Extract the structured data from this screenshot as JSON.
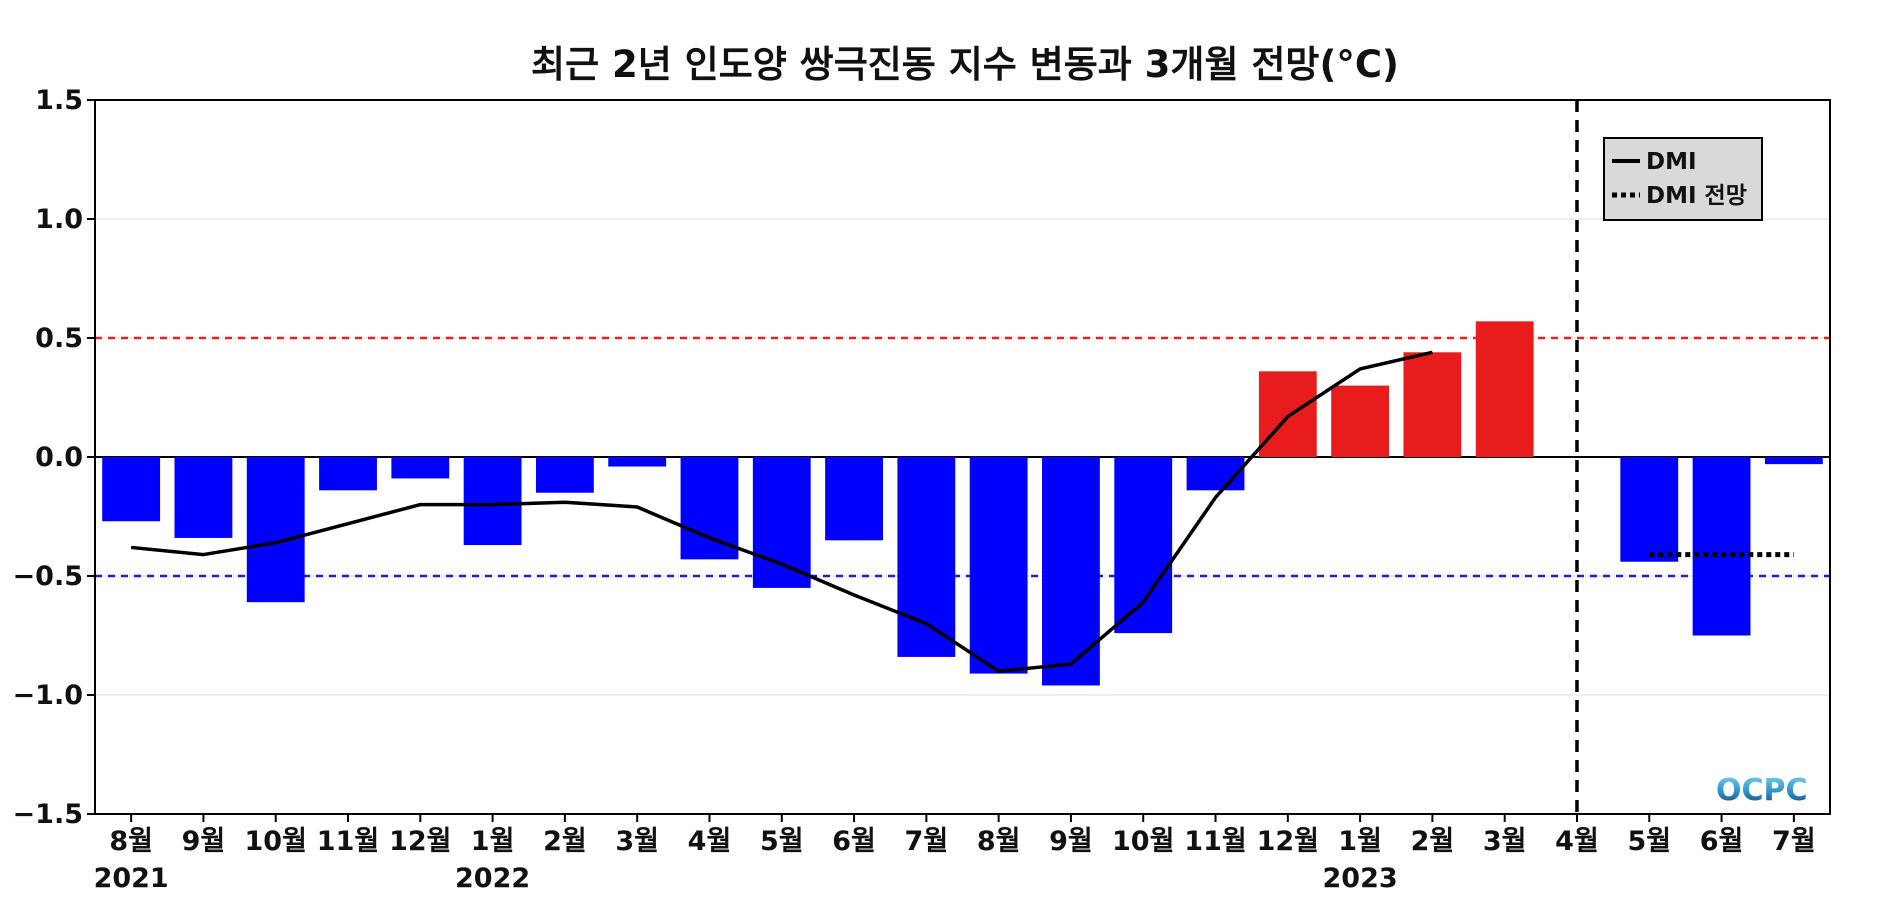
{
  "chart_data": {
    "type": "bar",
    "title": "최근 2년 인도양 쌍극진동 지수 변동과 3개월 전망(°C)",
    "categories": [
      "8월",
      "9월",
      "10월",
      "11월",
      "12월",
      "1월",
      "2월",
      "3월",
      "4월",
      "5월",
      "6월",
      "7월",
      "8월",
      "9월",
      "10월",
      "11월",
      "12월",
      "1월",
      "2월",
      "3월",
      "4월",
      "5월",
      "6월",
      "7월"
    ],
    "years": [
      {
        "label": "2021",
        "index": 0
      },
      {
        "label": "2022",
        "index": 5
      },
      {
        "label": "2023",
        "index": 17
      }
    ],
    "bar_values": [
      -0.27,
      -0.34,
      -0.61,
      -0.14,
      -0.09,
      -0.37,
      -0.15,
      -0.04,
      -0.43,
      -0.55,
      -0.35,
      -0.84,
      -0.91,
      -0.96,
      -0.74,
      -0.14,
      0.36,
      0.3,
      0.44,
      0.57,
      null,
      -0.44,
      -0.75,
      -0.03
    ],
    "series": [
      {
        "name": "DMI",
        "style": "solid",
        "color": "#000000",
        "values": [
          -0.38,
          -0.41,
          -0.36,
          -0.28,
          -0.2,
          -0.2,
          -0.19,
          -0.21,
          -0.34,
          -0.45,
          -0.58,
          -0.7,
          -0.9,
          -0.87,
          -0.61,
          -0.17,
          0.17,
          0.37,
          0.44,
          null,
          null,
          null,
          null,
          null
        ]
      },
      {
        "name": "DMI 전망",
        "style": "dotted",
        "color": "#000000",
        "values": [
          null,
          null,
          null,
          null,
          null,
          null,
          null,
          null,
          null,
          null,
          null,
          null,
          null,
          null,
          null,
          null,
          null,
          null,
          null,
          null,
          null,
          -0.41,
          -0.41,
          -0.41
        ]
      }
    ],
    "ylim": [
      -1.5,
      1.5
    ],
    "yticks": [
      "1.5",
      "1.0",
      "0.5",
      "0.0",
      "−0.5",
      "−1.0",
      "−1.5"
    ],
    "ytick_values": [
      1.5,
      1.0,
      0.5,
      0.0,
      -0.5,
      -1.0,
      -1.5
    ],
    "reference_lines": [
      {
        "value": 0.5,
        "color": "#e8201f",
        "style": "dashed"
      },
      {
        "value": -0.5,
        "color": "#1f1fd0",
        "style": "dashed"
      },
      {
        "value": 0.0,
        "color": "#000000",
        "style": "solid"
      }
    ],
    "forecast_divider_index": 20,
    "positive_color": "#e81c1c",
    "negative_color": "#0000ff",
    "grid": true,
    "legend_position": "top-right",
    "logo": "OCPC"
  }
}
